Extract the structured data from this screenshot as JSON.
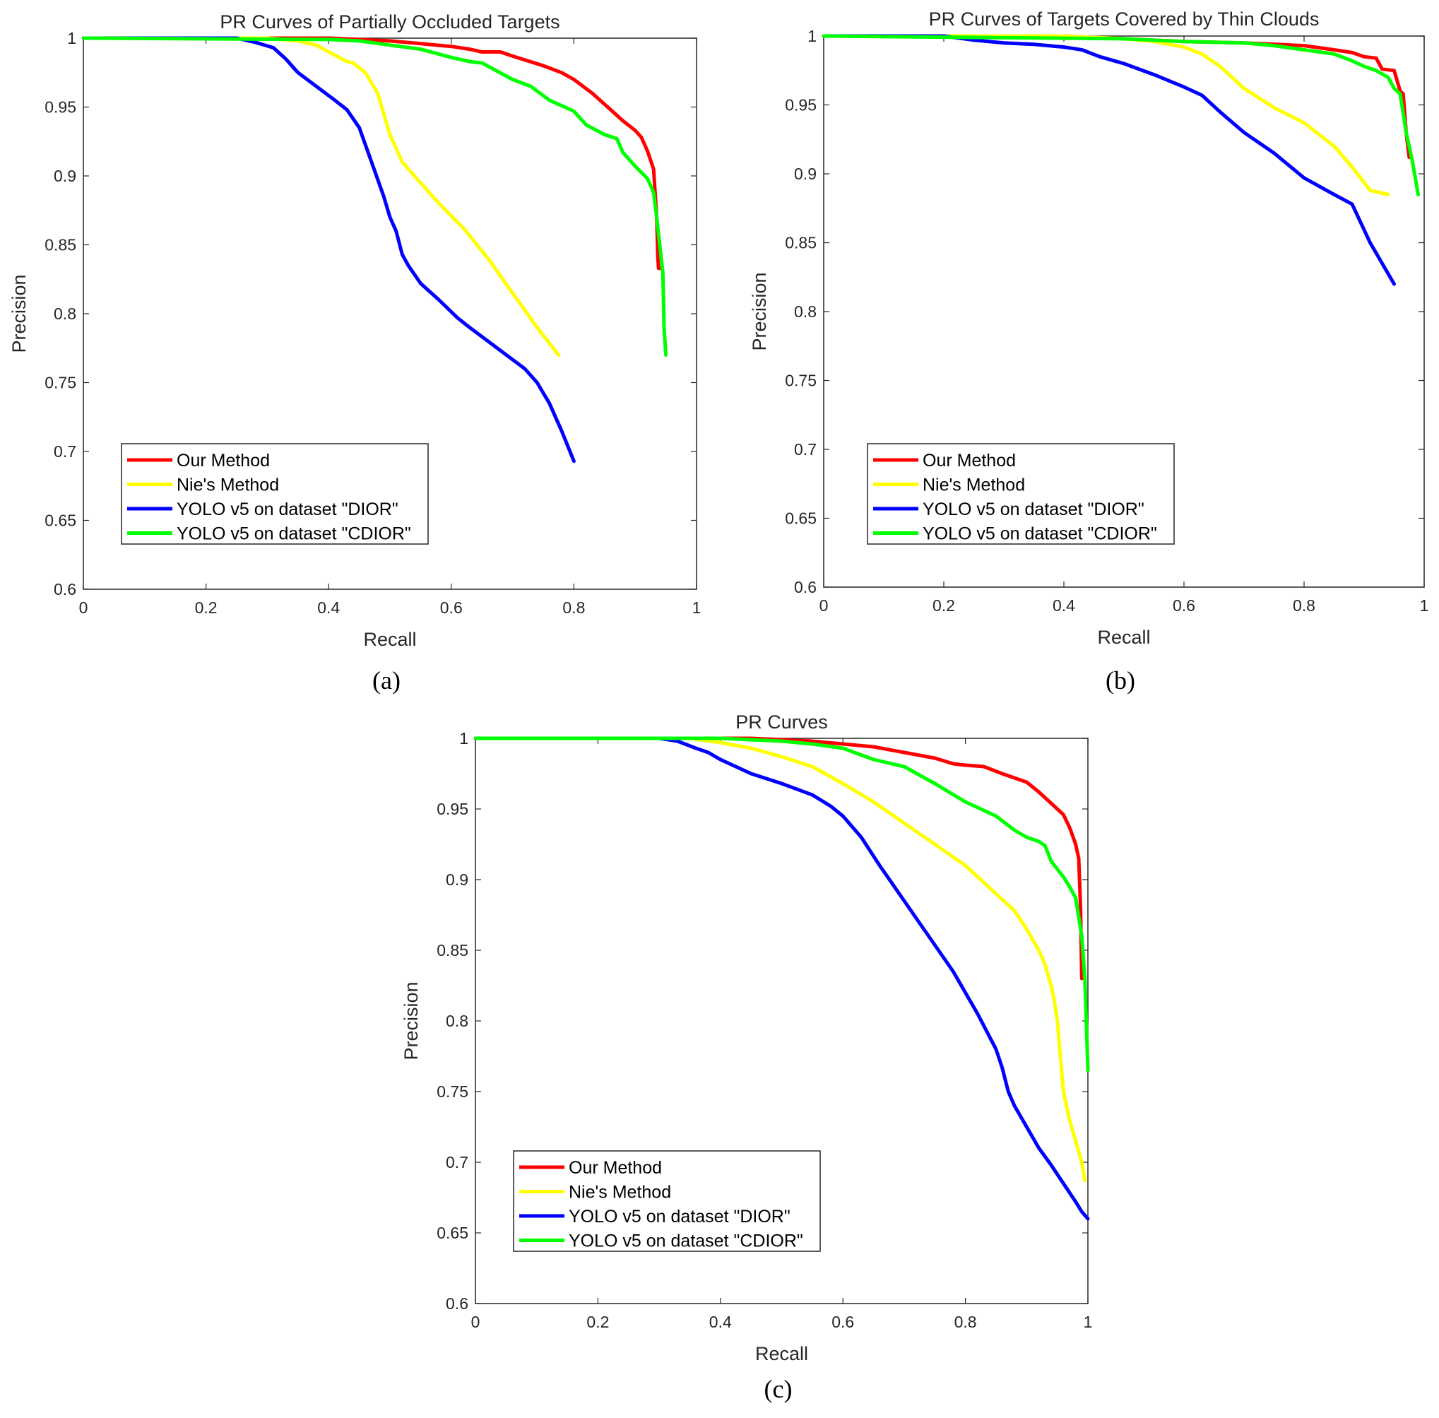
{
  "chart_data": [
    {
      "type": "line",
      "panel_label": "(a)",
      "title": "PR Curves of Partially Occluded Targets",
      "xlabel": "Recall",
      "ylabel": "Precision",
      "xlim": [
        0,
        1
      ],
      "ylim": [
        0.6,
        1
      ],
      "xticks": [
        0,
        0.2,
        0.4,
        0.6,
        0.8,
        1
      ],
      "xtick_labels": [
        "0",
        "0.2",
        "0.4",
        "0.6",
        "0.8",
        "1"
      ],
      "yticks": [
        0.6,
        0.65,
        0.7,
        0.75,
        0.8,
        0.85,
        0.9,
        0.95,
        1
      ],
      "ytick_labels": [
        "0.6",
        "0.65",
        "0.7",
        "0.75",
        "0.8",
        "0.85",
        "0.9",
        "0.95",
        "1"
      ],
      "grid": false,
      "legend_position": "lower-left",
      "series": [
        {
          "name": "Our Method",
          "color": "#ff0000",
          "x": [
            0,
            0.3,
            0.4,
            0.5,
            0.55,
            0.6,
            0.63,
            0.65,
            0.68,
            0.7,
            0.75,
            0.78,
            0.8,
            0.83,
            0.86,
            0.88,
            0.9,
            0.91,
            0.92,
            0.93,
            0.935,
            0.937,
            0.938,
            0.94
          ],
          "y": [
            1,
            1,
            1,
            0.998,
            0.996,
            0.994,
            0.992,
            0.99,
            0.99,
            0.987,
            0.98,
            0.975,
            0.97,
            0.96,
            0.948,
            0.94,
            0.933,
            0.928,
            0.918,
            0.905,
            0.87,
            0.84,
            0.833,
            0.833
          ]
        },
        {
          "name": "Nie's Method",
          "color": "#ffff00",
          "x": [
            0,
            0.3,
            0.35,
            0.38,
            0.4,
            0.43,
            0.44,
            0.46,
            0.48,
            0.5,
            0.52,
            0.54,
            0.58,
            0.62,
            0.66,
            0.7,
            0.74,
            0.775
          ],
          "y": [
            1,
            1,
            0.998,
            0.995,
            0.99,
            0.983,
            0.982,
            0.975,
            0.96,
            0.93,
            0.91,
            0.9,
            0.88,
            0.862,
            0.84,
            0.815,
            0.79,
            0.77
          ]
        },
        {
          "name": "YOLO v5 on dataset \"DIOR\"",
          "color": "#0000ff",
          "x": [
            0,
            0.25,
            0.28,
            0.31,
            0.33,
            0.35,
            0.38,
            0.41,
            0.43,
            0.45,
            0.47,
            0.49,
            0.5,
            0.51,
            0.52,
            0.53,
            0.55,
            0.58,
            0.61,
            0.63,
            0.66,
            0.69,
            0.72,
            0.74,
            0.76,
            0.78,
            0.8
          ],
          "y": [
            1,
            1,
            0.997,
            0.993,
            0.985,
            0.975,
            0.965,
            0.955,
            0.948,
            0.935,
            0.91,
            0.885,
            0.87,
            0.86,
            0.843,
            0.835,
            0.822,
            0.81,
            0.797,
            0.79,
            0.78,
            0.77,
            0.76,
            0.75,
            0.735,
            0.715,
            0.693
          ]
        },
        {
          "name": "YOLO v5 on dataset \"CDIOR\"",
          "color": "#00ff00",
          "x": [
            0,
            0.4,
            0.45,
            0.5,
            0.55,
            0.6,
            0.63,
            0.65,
            0.7,
            0.73,
            0.76,
            0.8,
            0.82,
            0.85,
            0.87,
            0.88,
            0.9,
            0.92,
            0.93,
            0.935,
            0.94,
            0.945,
            0.947,
            0.95
          ],
          "y": [
            1,
            0.999,
            0.998,
            0.995,
            0.992,
            0.986,
            0.983,
            0.982,
            0.97,
            0.965,
            0.955,
            0.947,
            0.937,
            0.93,
            0.927,
            0.917,
            0.907,
            0.898,
            0.888,
            0.87,
            0.85,
            0.83,
            0.79,
            0.77
          ]
        }
      ]
    },
    {
      "type": "line",
      "panel_label": "(b)",
      "title": "PR Curves of Targets Covered by Thin Clouds",
      "xlabel": "Recall",
      "ylabel": "Precision",
      "xlim": [
        0,
        1
      ],
      "ylim": [
        0.6,
        1
      ],
      "xticks": [
        0,
        0.2,
        0.4,
        0.6,
        0.8,
        1
      ],
      "xtick_labels": [
        "0",
        "0.2",
        "0.4",
        "0.6",
        "0.8",
        "1"
      ],
      "yticks": [
        0.6,
        0.65,
        0.7,
        0.75,
        0.8,
        0.85,
        0.9,
        0.95,
        1
      ],
      "ytick_labels": [
        "0.6",
        "0.65",
        "0.7",
        "0.75",
        "0.8",
        "0.85",
        "0.9",
        "0.95",
        "1"
      ],
      "grid": false,
      "legend_position": "lower-left",
      "series": [
        {
          "name": "Our Method",
          "color": "#ff0000",
          "x": [
            0,
            0.4,
            0.5,
            0.6,
            0.7,
            0.8,
            0.85,
            0.88,
            0.9,
            0.92,
            0.93,
            0.95,
            0.96,
            0.965,
            0.97,
            0.975
          ],
          "y": [
            1,
            1,
            0.998,
            0.996,
            0.995,
            0.993,
            0.99,
            0.988,
            0.985,
            0.984,
            0.976,
            0.975,
            0.96,
            0.958,
            0.93,
            0.912
          ]
        },
        {
          "name": "Nie's Method",
          "color": "#ffff00",
          "x": [
            0,
            0.4,
            0.5,
            0.55,
            0.6,
            0.63,
            0.66,
            0.7,
            0.75,
            0.8,
            0.85,
            0.88,
            0.91,
            0.94
          ],
          "y": [
            1,
            1,
            0.998,
            0.996,
            0.992,
            0.987,
            0.978,
            0.962,
            0.948,
            0.937,
            0.92,
            0.905,
            0.888,
            0.885
          ]
        },
        {
          "name": "YOLO v5 on dataset \"DIOR\"",
          "color": "#0000ff",
          "x": [
            0,
            0.2,
            0.25,
            0.3,
            0.35,
            0.4,
            0.43,
            0.46,
            0.5,
            0.55,
            0.6,
            0.63,
            0.66,
            0.7,
            0.75,
            0.8,
            0.85,
            0.88,
            0.91,
            0.95
          ],
          "y": [
            1,
            1,
            0.997,
            0.995,
            0.994,
            0.992,
            0.99,
            0.985,
            0.98,
            0.972,
            0.963,
            0.957,
            0.945,
            0.93,
            0.915,
            0.897,
            0.885,
            0.878,
            0.85,
            0.82
          ]
        },
        {
          "name": "YOLO v5 on dataset \"CDIOR\"",
          "color": "#00ff00",
          "x": [
            0,
            0.5,
            0.6,
            0.7,
            0.75,
            0.8,
            0.85,
            0.88,
            0.9,
            0.92,
            0.94,
            0.95,
            0.96,
            0.97,
            0.98,
            0.99
          ],
          "y": [
            1,
            0.998,
            0.996,
            0.995,
            0.993,
            0.99,
            0.987,
            0.982,
            0.978,
            0.975,
            0.97,
            0.962,
            0.958,
            0.93,
            0.91,
            0.885
          ]
        }
      ]
    },
    {
      "type": "line",
      "panel_label": "(c)",
      "title": "PR Curves",
      "xlabel": "Recall",
      "ylabel": "Precision",
      "xlim": [
        0,
        1
      ],
      "ylim": [
        0.6,
        1
      ],
      "xticks": [
        0,
        0.2,
        0.4,
        0.6,
        0.8,
        1
      ],
      "xtick_labels": [
        "0",
        "0.2",
        "0.4",
        "0.6",
        "0.8",
        "1"
      ],
      "yticks": [
        0.6,
        0.65,
        0.7,
        0.75,
        0.8,
        0.85,
        0.9,
        0.95,
        1
      ],
      "ytick_labels": [
        "0.6",
        "0.65",
        "0.7",
        "0.75",
        "0.8",
        "0.85",
        "0.9",
        "0.95",
        "1"
      ],
      "grid": false,
      "legend_position": "lower-left",
      "series": [
        {
          "name": "Our Method",
          "color": "#ff0000",
          "x": [
            0,
            0.45,
            0.5,
            0.55,
            0.6,
            0.65,
            0.7,
            0.75,
            0.78,
            0.8,
            0.83,
            0.86,
            0.88,
            0.9,
            0.92,
            0.94,
            0.96,
            0.97,
            0.98,
            0.985,
            0.988,
            0.99
          ],
          "y": [
            1,
            1,
            0.999,
            0.998,
            0.996,
            0.994,
            0.99,
            0.986,
            0.982,
            0.981,
            0.98,
            0.975,
            0.972,
            0.969,
            0.962,
            0.954,
            0.946,
            0.937,
            0.925,
            0.915,
            0.88,
            0.83
          ]
        },
        {
          "name": "Nie's Method",
          "color": "#ffff00",
          "x": [
            0,
            0.35,
            0.4,
            0.45,
            0.5,
            0.55,
            0.6,
            0.65,
            0.7,
            0.75,
            0.8,
            0.85,
            0.88,
            0.9,
            0.92,
            0.93,
            0.94,
            0.945,
            0.95,
            0.955,
            0.96,
            0.97,
            0.98,
            0.99,
            0.995
          ],
          "y": [
            1,
            1,
            0.997,
            0.993,
            0.987,
            0.98,
            0.968,
            0.955,
            0.94,
            0.925,
            0.91,
            0.89,
            0.878,
            0.865,
            0.85,
            0.84,
            0.825,
            0.815,
            0.8,
            0.775,
            0.75,
            0.73,
            0.715,
            0.7,
            0.687
          ]
        },
        {
          "name": "YOLO v5 on dataset \"DIOR\"",
          "color": "#0000ff",
          "x": [
            0,
            0.3,
            0.33,
            0.36,
            0.38,
            0.4,
            0.45,
            0.5,
            0.55,
            0.58,
            0.6,
            0.63,
            0.66,
            0.7,
            0.74,
            0.78,
            0.82,
            0.85,
            0.86,
            0.87,
            0.88,
            0.9,
            0.92,
            0.94,
            0.96,
            0.98,
            0.99,
            1.0
          ],
          "y": [
            1,
            1,
            0.998,
            0.993,
            0.99,
            0.985,
            0.975,
            0.968,
            0.96,
            0.952,
            0.945,
            0.93,
            0.91,
            0.885,
            0.86,
            0.835,
            0.805,
            0.78,
            0.767,
            0.75,
            0.74,
            0.725,
            0.71,
            0.698,
            0.685,
            0.672,
            0.665,
            0.66
          ]
        },
        {
          "name": "YOLO v5 on dataset \"CDIOR\"",
          "color": "#00ff00",
          "x": [
            0,
            0.4,
            0.5,
            0.55,
            0.6,
            0.65,
            0.7,
            0.75,
            0.8,
            0.85,
            0.88,
            0.9,
            0.92,
            0.93,
            0.94,
            0.96,
            0.97,
            0.98,
            0.99,
            0.995,
            1.0
          ],
          "y": [
            1,
            1,
            0.998,
            0.996,
            0.993,
            0.985,
            0.98,
            0.968,
            0.955,
            0.945,
            0.935,
            0.93,
            0.927,
            0.924,
            0.913,
            0.902,
            0.895,
            0.887,
            0.86,
            0.83,
            0.765
          ]
        }
      ]
    }
  ]
}
